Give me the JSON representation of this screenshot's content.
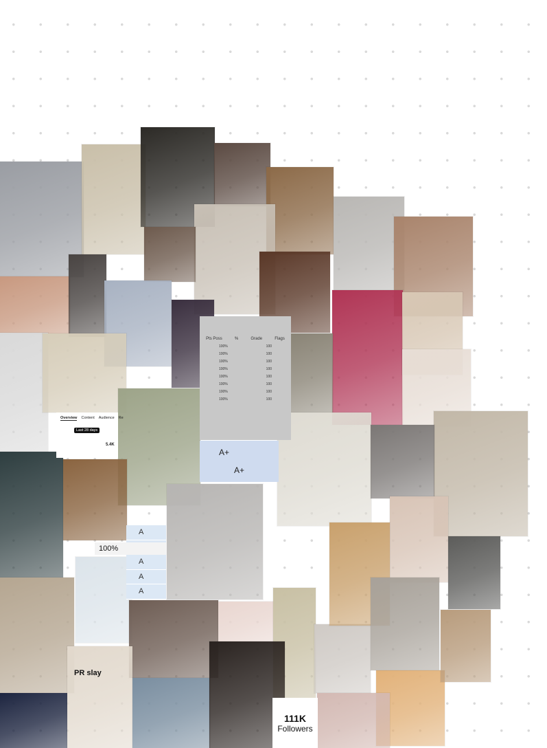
{
  "page": {
    "background": "#ffffff",
    "dot_color": "#d9d9d9"
  },
  "collage": {
    "tiles": [
      {
        "name": "photo-selfie-grey-top",
        "color": "#9a9da3"
      },
      {
        "name": "photo-avocado-toast",
        "color": "#c9bfa9"
      },
      {
        "name": "photo-concert-crowd",
        "color": "#2c2a26"
      },
      {
        "name": "photo-brunette-hair",
        "color": "#5b4a42"
      },
      {
        "name": "photo-cookies-tray",
        "color": "#8c6a48"
      },
      {
        "name": "photo-mirror-outfit",
        "color": "#c8c0b5"
      },
      {
        "name": "photo-workout-selfie",
        "color": "#6d5a4d"
      },
      {
        "name": "photo-toned-abs",
        "color": "#b9b7b4"
      },
      {
        "name": "photo-gift-boxes",
        "color": "#a9846c"
      },
      {
        "name": "photo-glowing-skin",
        "color": "#c89980"
      },
      {
        "name": "photo-heart-hands",
        "color": "#4a4543"
      },
      {
        "name": "photo-hospital-hallway",
        "color": "#a8b2c2"
      },
      {
        "name": "photo-city-night",
        "color": "#3a2f3f"
      },
      {
        "name": "photo-violin",
        "color": "#5a3828"
      },
      {
        "name": "photo-stethoscope",
        "color": "#b03555"
      },
      {
        "name": "photo-fruit-bowl",
        "color": "#d8c8b5"
      },
      {
        "name": "photo-doctor-white-coat",
        "color": "#d9d9d9"
      },
      {
        "name": "photo-sheet-music",
        "color": "#d6cdb9"
      },
      {
        "name": "photo-youtube-plaque",
        "color": "#8a8476"
      },
      {
        "name": "photo-pilates-studio",
        "color": "#e7ddd5"
      },
      {
        "name": "photo-money-stacks",
        "color": "#9da489"
      },
      {
        "name": "photo-casual-outfit",
        "color": "#c2b8a8"
      },
      {
        "name": "photo-surgeons",
        "color": "#2e3e40"
      },
      {
        "name": "photo-art-desk",
        "color": "#8a6440"
      },
      {
        "name": "photo-hospital-fisheye",
        "color": "#b7b5b3"
      },
      {
        "name": "photo-study-notes",
        "color": "#dedbd2"
      },
      {
        "name": "photo-relaxing-legs",
        "color": "#7b7775"
      },
      {
        "name": "photo-glasses-selfie",
        "color": "#d8c4b6"
      },
      {
        "name": "photo-water-bottle",
        "color": "#5c5c5a"
      },
      {
        "name": "photo-packages",
        "color": "#b5a691"
      },
      {
        "name": "photo-passport",
        "color": "#dce4ea"
      },
      {
        "name": "photo-plane-window",
        "color": "#6e5d54"
      },
      {
        "name": "photo-highlighters",
        "color": "#e9d6d0"
      },
      {
        "name": "photo-cash-fan",
        "color": "#c8c0a4"
      },
      {
        "name": "photo-fit-mirror",
        "color": "#cfcac5"
      },
      {
        "name": "photo-lit-house",
        "color": "#1d2540"
      },
      {
        "name": "photo-supplements",
        "color": "#e2d9cd"
      },
      {
        "name": "photo-surgical-tools",
        "color": "#7a8ea0"
      },
      {
        "name": "photo-friends-party",
        "color": "#2a2320"
      },
      {
        "name": "photo-fruit-salad",
        "color": "#e2b27a"
      },
      {
        "name": "photo-knit-sweater",
        "color": "#d3b9b3"
      },
      {
        "name": "photo-boxes-floor",
        "color": "#b89c7d"
      },
      {
        "name": "photo-beach-sunset",
        "color": "#c9a16d"
      },
      {
        "name": "photo-books-room",
        "color": "#a8a29a"
      }
    ],
    "followers": {
      "count": "111K",
      "label": "Followers"
    },
    "pr_label": "PR slay",
    "percent_label": "100%",
    "grades": [
      "A",
      "A",
      "A",
      "A",
      "A"
    ],
    "grade_table": {
      "headers": [
        "Pts Poss",
        "%",
        "Grade",
        "Flags"
      ],
      "rows": [
        [
          "100%",
          "100"
        ],
        [
          "100%",
          "100"
        ],
        [
          "100%",
          "100"
        ],
        [
          "100%",
          "100"
        ],
        [
          "100%",
          "100"
        ],
        [
          "100%",
          "100"
        ],
        [
          "100%",
          "100"
        ],
        [
          "100%",
          "100"
        ]
      ]
    },
    "analytics": {
      "tabs": [
        "Overview",
        "Content",
        "Audience",
        "Re"
      ],
      "filter": "Last 28 days",
      "value": "5.4K"
    },
    "aplus": [
      "A+",
      "A+"
    ]
  }
}
